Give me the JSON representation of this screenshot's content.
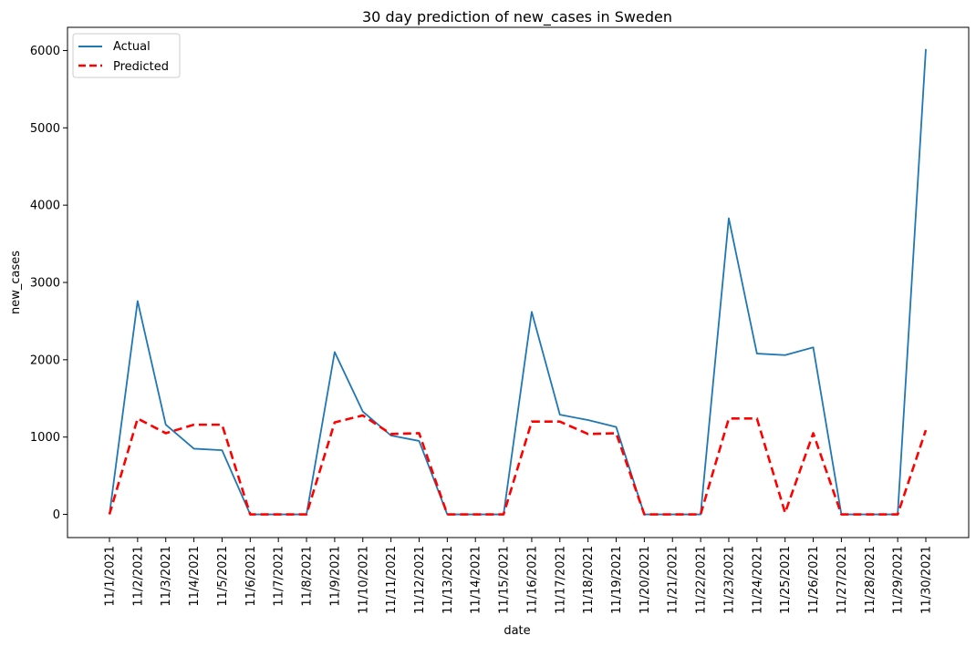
{
  "chart_data": {
    "type": "line",
    "title": "30 day prediction of new_cases in Sweden",
    "xlabel": "date",
    "ylabel": "new_cases",
    "x": [
      "11/1/2021",
      "11/2/2021",
      "11/3/2021",
      "11/4/2021",
      "11/5/2021",
      "11/6/2021",
      "11/7/2021",
      "11/8/2021",
      "11/9/2021",
      "11/10/2021",
      "11/11/2021",
      "11/12/2021",
      "11/13/2021",
      "11/14/2021",
      "11/15/2021",
      "11/16/2021",
      "11/17/2021",
      "11/18/2021",
      "11/19/2021",
      "11/20/2021",
      "11/21/2021",
      "11/22/2021",
      "11/23/2021",
      "11/24/2021",
      "11/25/2021",
      "11/26/2021",
      "11/27/2021",
      "11/28/2021",
      "11/29/2021",
      "11/30/2021"
    ],
    "ylim": [
      -300,
      6300
    ],
    "yticks": [
      0,
      1000,
      2000,
      3000,
      4000,
      5000,
      6000
    ],
    "legend_position": "top-left",
    "grid": false,
    "series": [
      {
        "name": "Actual",
        "color": "#1f77b4",
        "style": "solid",
        "values": [
          0,
          2760,
          1160,
          850,
          830,
          0,
          0,
          0,
          2100,
          1330,
          1020,
          950,
          0,
          0,
          0,
          2620,
          1290,
          1220,
          1130,
          0,
          0,
          0,
          3830,
          2080,
          2060,
          2160,
          0,
          0,
          0,
          6020
        ]
      },
      {
        "name": "Predicted",
        "color": "#ff0000",
        "style": "dashed",
        "values": [
          0,
          1240,
          1050,
          1160,
          1160,
          0,
          0,
          0,
          1190,
          1280,
          1040,
          1050,
          0,
          0,
          0,
          1200,
          1200,
          1040,
          1050,
          0,
          0,
          0,
          1240,
          1240,
          20,
          1050,
          0,
          0,
          0,
          1090
        ]
      }
    ]
  }
}
